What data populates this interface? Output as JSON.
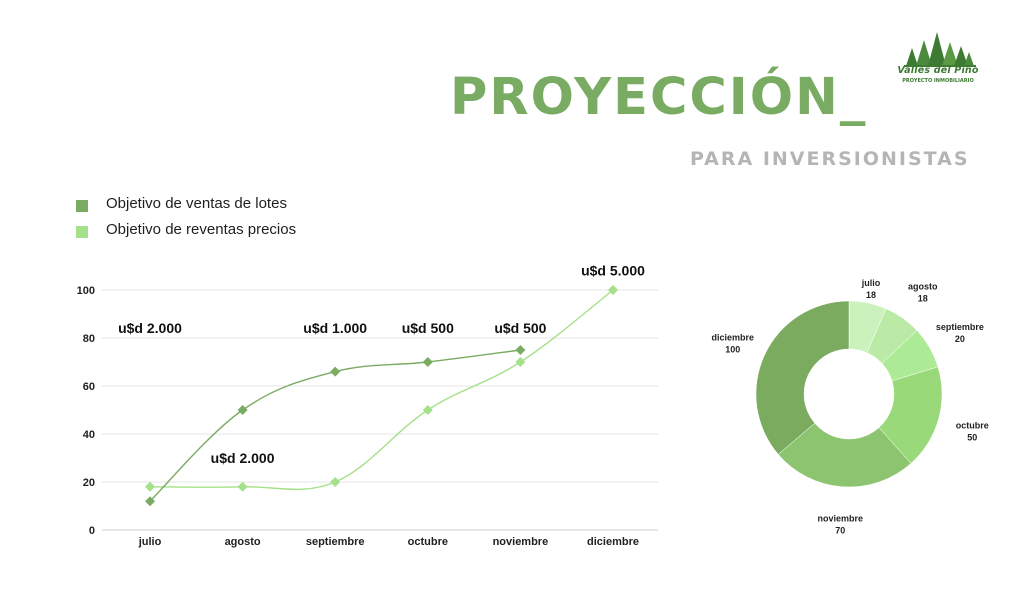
{
  "logo": {
    "name": "Valles del Pino",
    "tagline": "PROYECTO INMOBILIARIO"
  },
  "header": {
    "title": "PROYECCIÓN_",
    "subtitle": "PARA INVERSIONISTAS"
  },
  "colors": {
    "dark_green": "#7aab63",
    "light_green": "#a5e08a",
    "subtitle_gray": "#b5b5b5",
    "grid": "#e6e6e6"
  },
  "chart_data": [
    {
      "type": "line",
      "categories": [
        "julio",
        "agosto",
        "septiembre",
        "octubre",
        "noviembre",
        "diciembre"
      ],
      "ylim": [
        0,
        100
      ],
      "yticks": [
        0,
        20,
        40,
        60,
        80,
        100
      ],
      "xlabel": "",
      "ylabel": "",
      "grid": true,
      "legend": "top-left",
      "series": [
        {
          "name": "Objetivo de ventas de lotes",
          "color": "#7aab63",
          "values": [
            12,
            50,
            66,
            70,
            75,
            null
          ]
        },
        {
          "name": "Objetivo de reventas precios",
          "color": "#a5e08a",
          "values": [
            18,
            18,
            20,
            50,
            70,
            100
          ]
        }
      ],
      "annotations": [
        {
          "text": "u$d 2.000",
          "category": "julio",
          "y": 82
        },
        {
          "text": "u$d 2.000",
          "category": "agosto",
          "y": 28
        },
        {
          "text": "u$d 1.000",
          "category": "septiembre",
          "y": 82
        },
        {
          "text": "u$d 500",
          "category": "octubre",
          "y": 82
        },
        {
          "text": "u$d 500",
          "category": "noviembre",
          "y": 82
        },
        {
          "text": "u$d 5.000",
          "category": "diciembre",
          "y": 106
        }
      ]
    },
    {
      "type": "pie",
      "donut": true,
      "slices": [
        {
          "label": "julio",
          "value": 18,
          "color": "#cbf2bd"
        },
        {
          "label": "agosto",
          "value": 18,
          "color": "#baeaa6"
        },
        {
          "label": "septiembre",
          "value": 20,
          "color": "#acea95"
        },
        {
          "label": "octubre",
          "value": 50,
          "color": "#9ad979"
        },
        {
          "label": "noviembre",
          "value": 70,
          "color": "#8cc46f"
        },
        {
          "label": "diciembre",
          "value": 100,
          "color": "#7aab5e"
        }
      ]
    }
  ]
}
